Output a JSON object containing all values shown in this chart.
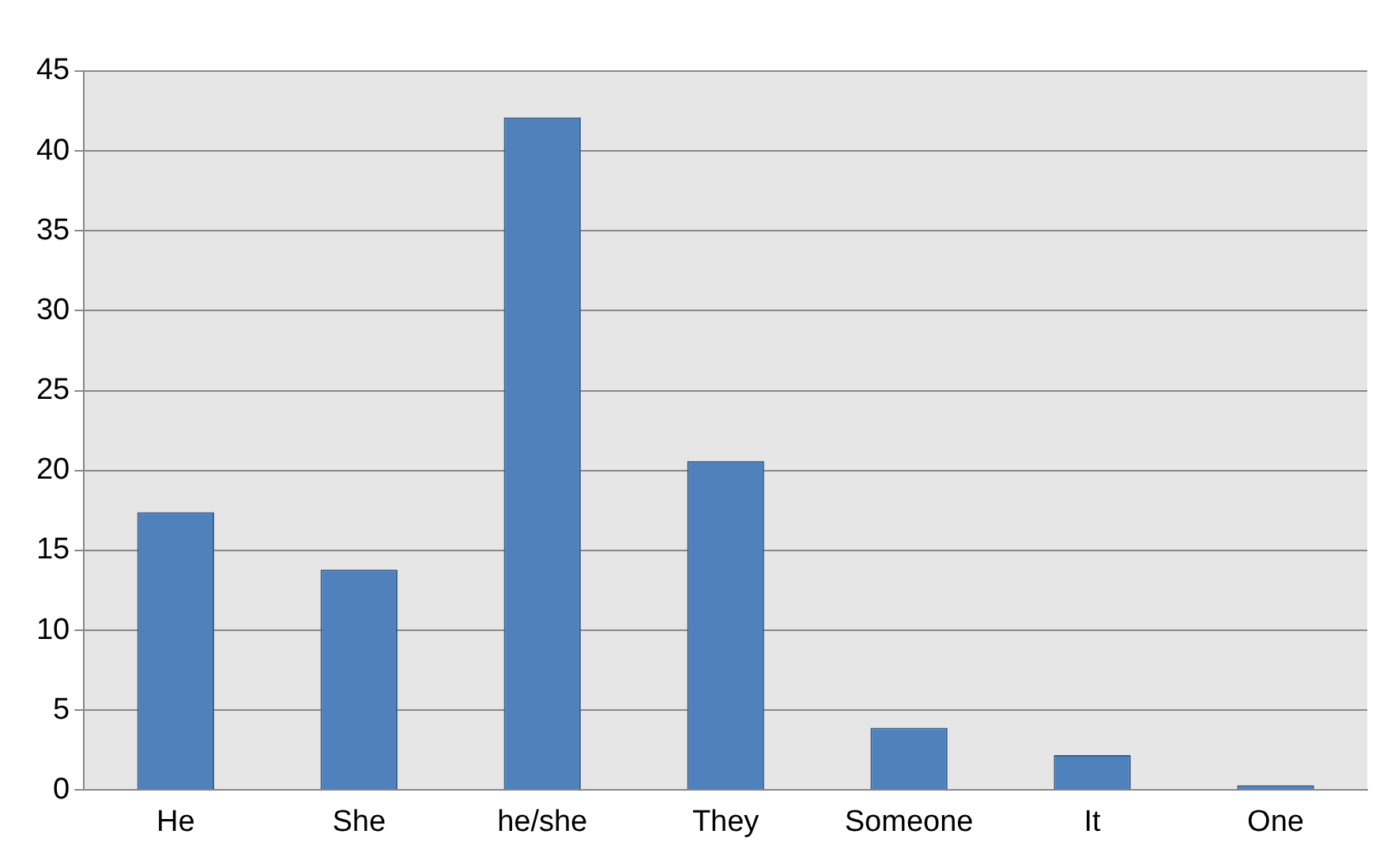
{
  "chart_data": {
    "type": "bar",
    "categories": [
      "He",
      "She",
      "he/she",
      "They",
      "Someone",
      "It",
      "One"
    ],
    "values": [
      17.4,
      13.8,
      42.1,
      20.6,
      3.9,
      2.2,
      0.3
    ],
    "color": "#4f81bd",
    "ylim": [
      0,
      45
    ],
    "yticks": [
      0,
      5,
      10,
      15,
      20,
      25,
      30,
      35,
      40,
      45
    ],
    "grid": "y",
    "legend": false
  }
}
